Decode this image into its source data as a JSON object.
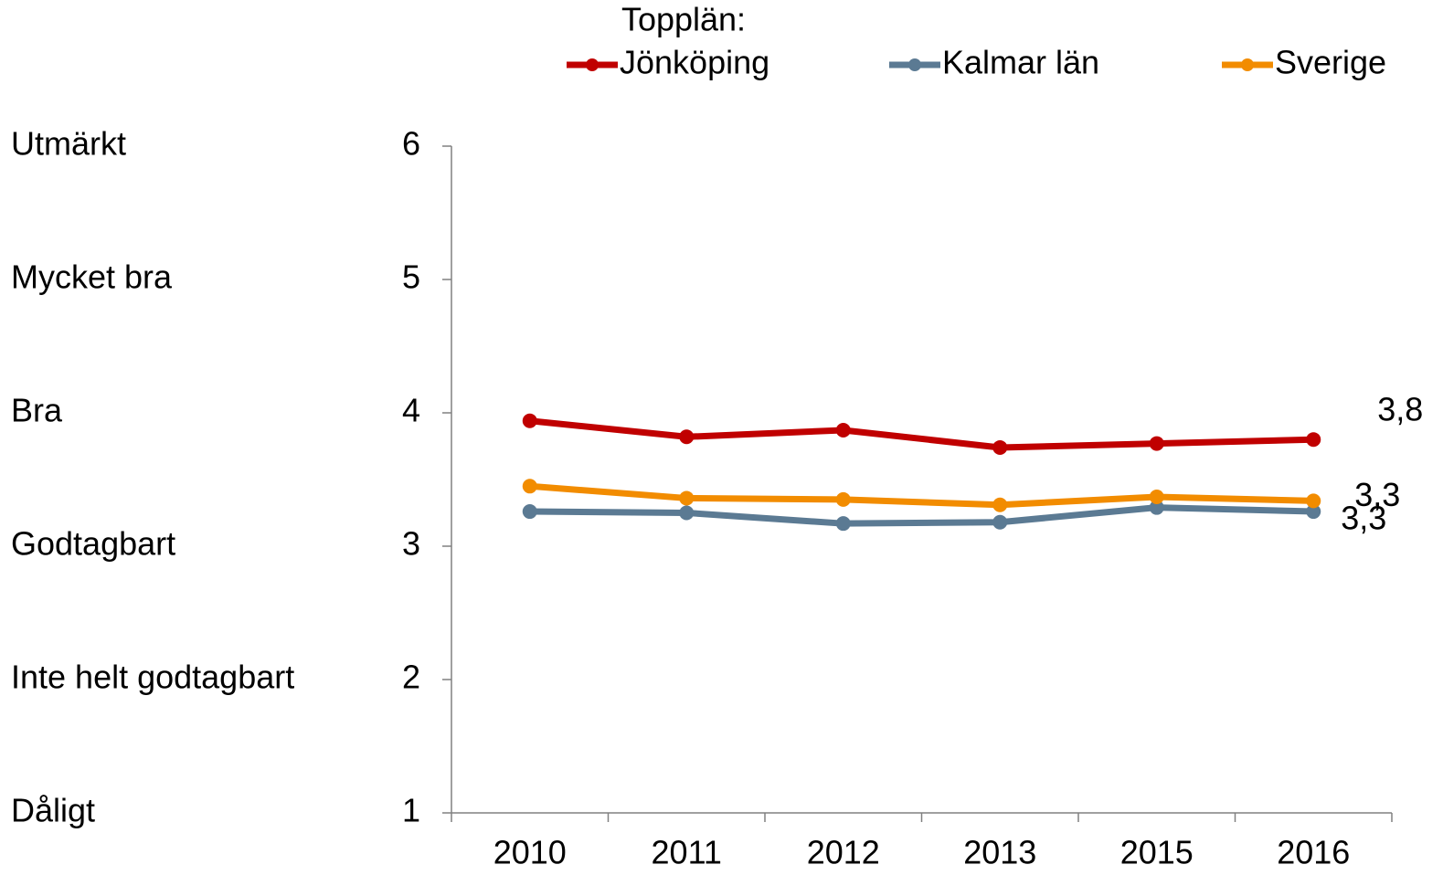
{
  "chart_data": {
    "type": "line",
    "legend_title": "Topplän:",
    "legend": "top",
    "categories": [
      "2010",
      "2011",
      "2012",
      "2013",
      "2015",
      "2016"
    ],
    "series": [
      {
        "name": "Jönköping",
        "color": "#c00000",
        "values": [
          3.94,
          3.82,
          3.87,
          3.74,
          3.77,
          3.8
        ],
        "value_labels": [
          null,
          null,
          null,
          null,
          null,
          "3,8"
        ]
      },
      {
        "name": "Kalmar län",
        "color": "#5b7a93",
        "values": [
          3.26,
          3.25,
          3.17,
          3.18,
          3.29,
          3.26
        ],
        "value_labels": [
          null,
          null,
          null,
          null,
          null,
          "3,3"
        ]
      },
      {
        "name": "Sverige",
        "color": "#f28c00",
        "values": [
          3.45,
          3.36,
          3.35,
          3.31,
          3.37,
          3.34
        ],
        "value_labels": [
          null,
          null,
          null,
          null,
          null,
          "3,3"
        ]
      }
    ],
    "ylim": [
      1,
      6
    ],
    "yticks": [
      1,
      2,
      3,
      4,
      5,
      6
    ],
    "scale_labels": [
      {
        "value": 6,
        "label": "Utmärkt"
      },
      {
        "value": 5,
        "label": "Mycket bra"
      },
      {
        "value": 4,
        "label": "Bra"
      },
      {
        "value": 3,
        "label": "Godtagbart"
      },
      {
        "value": 2,
        "label": "Inte helt godtagbart"
      },
      {
        "value": 1,
        "label": "Dåligt"
      }
    ],
    "grid": false
  }
}
